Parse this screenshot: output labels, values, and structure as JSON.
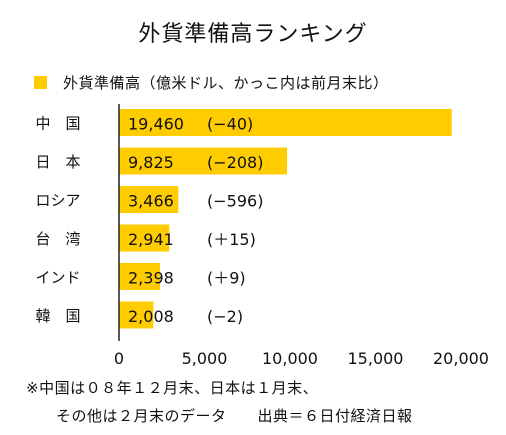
{
  "chart_data": {
    "type": "bar",
    "orientation": "horizontal",
    "title": "外貨準備高ランキング",
    "legend": "外貨準備高（億米ドル、かっこ内は前月末比）",
    "categories": [
      "中　国",
      "日　本",
      "ロシア",
      "台　湾",
      "インド",
      "韓　国"
    ],
    "values": [
      19460,
      9825,
      3466,
      2941,
      2398,
      2008
    ],
    "value_labels": [
      "19,460",
      "9,825",
      "3,466",
      "2,941",
      "2,398",
      "2,008"
    ],
    "change_labels": [
      "(−40)",
      "(−208)",
      "(−596)",
      "(＋15)",
      "(＋9)",
      "(−2)"
    ],
    "xlim": [
      0,
      20000
    ],
    "xticks": [
      0,
      5000,
      10000,
      15000,
      20000
    ],
    "xtick_labels": [
      "0",
      "5,000",
      "10,000",
      "15,000",
      "20,000"
    ],
    "grid": false,
    "bar_color": "#ffcc00"
  },
  "notes": {
    "line1": "※中国は０８年１２月末、日本は１月末、",
    "line2": "その他は２月末のデータ　　出典＝６日付経済日報"
  }
}
